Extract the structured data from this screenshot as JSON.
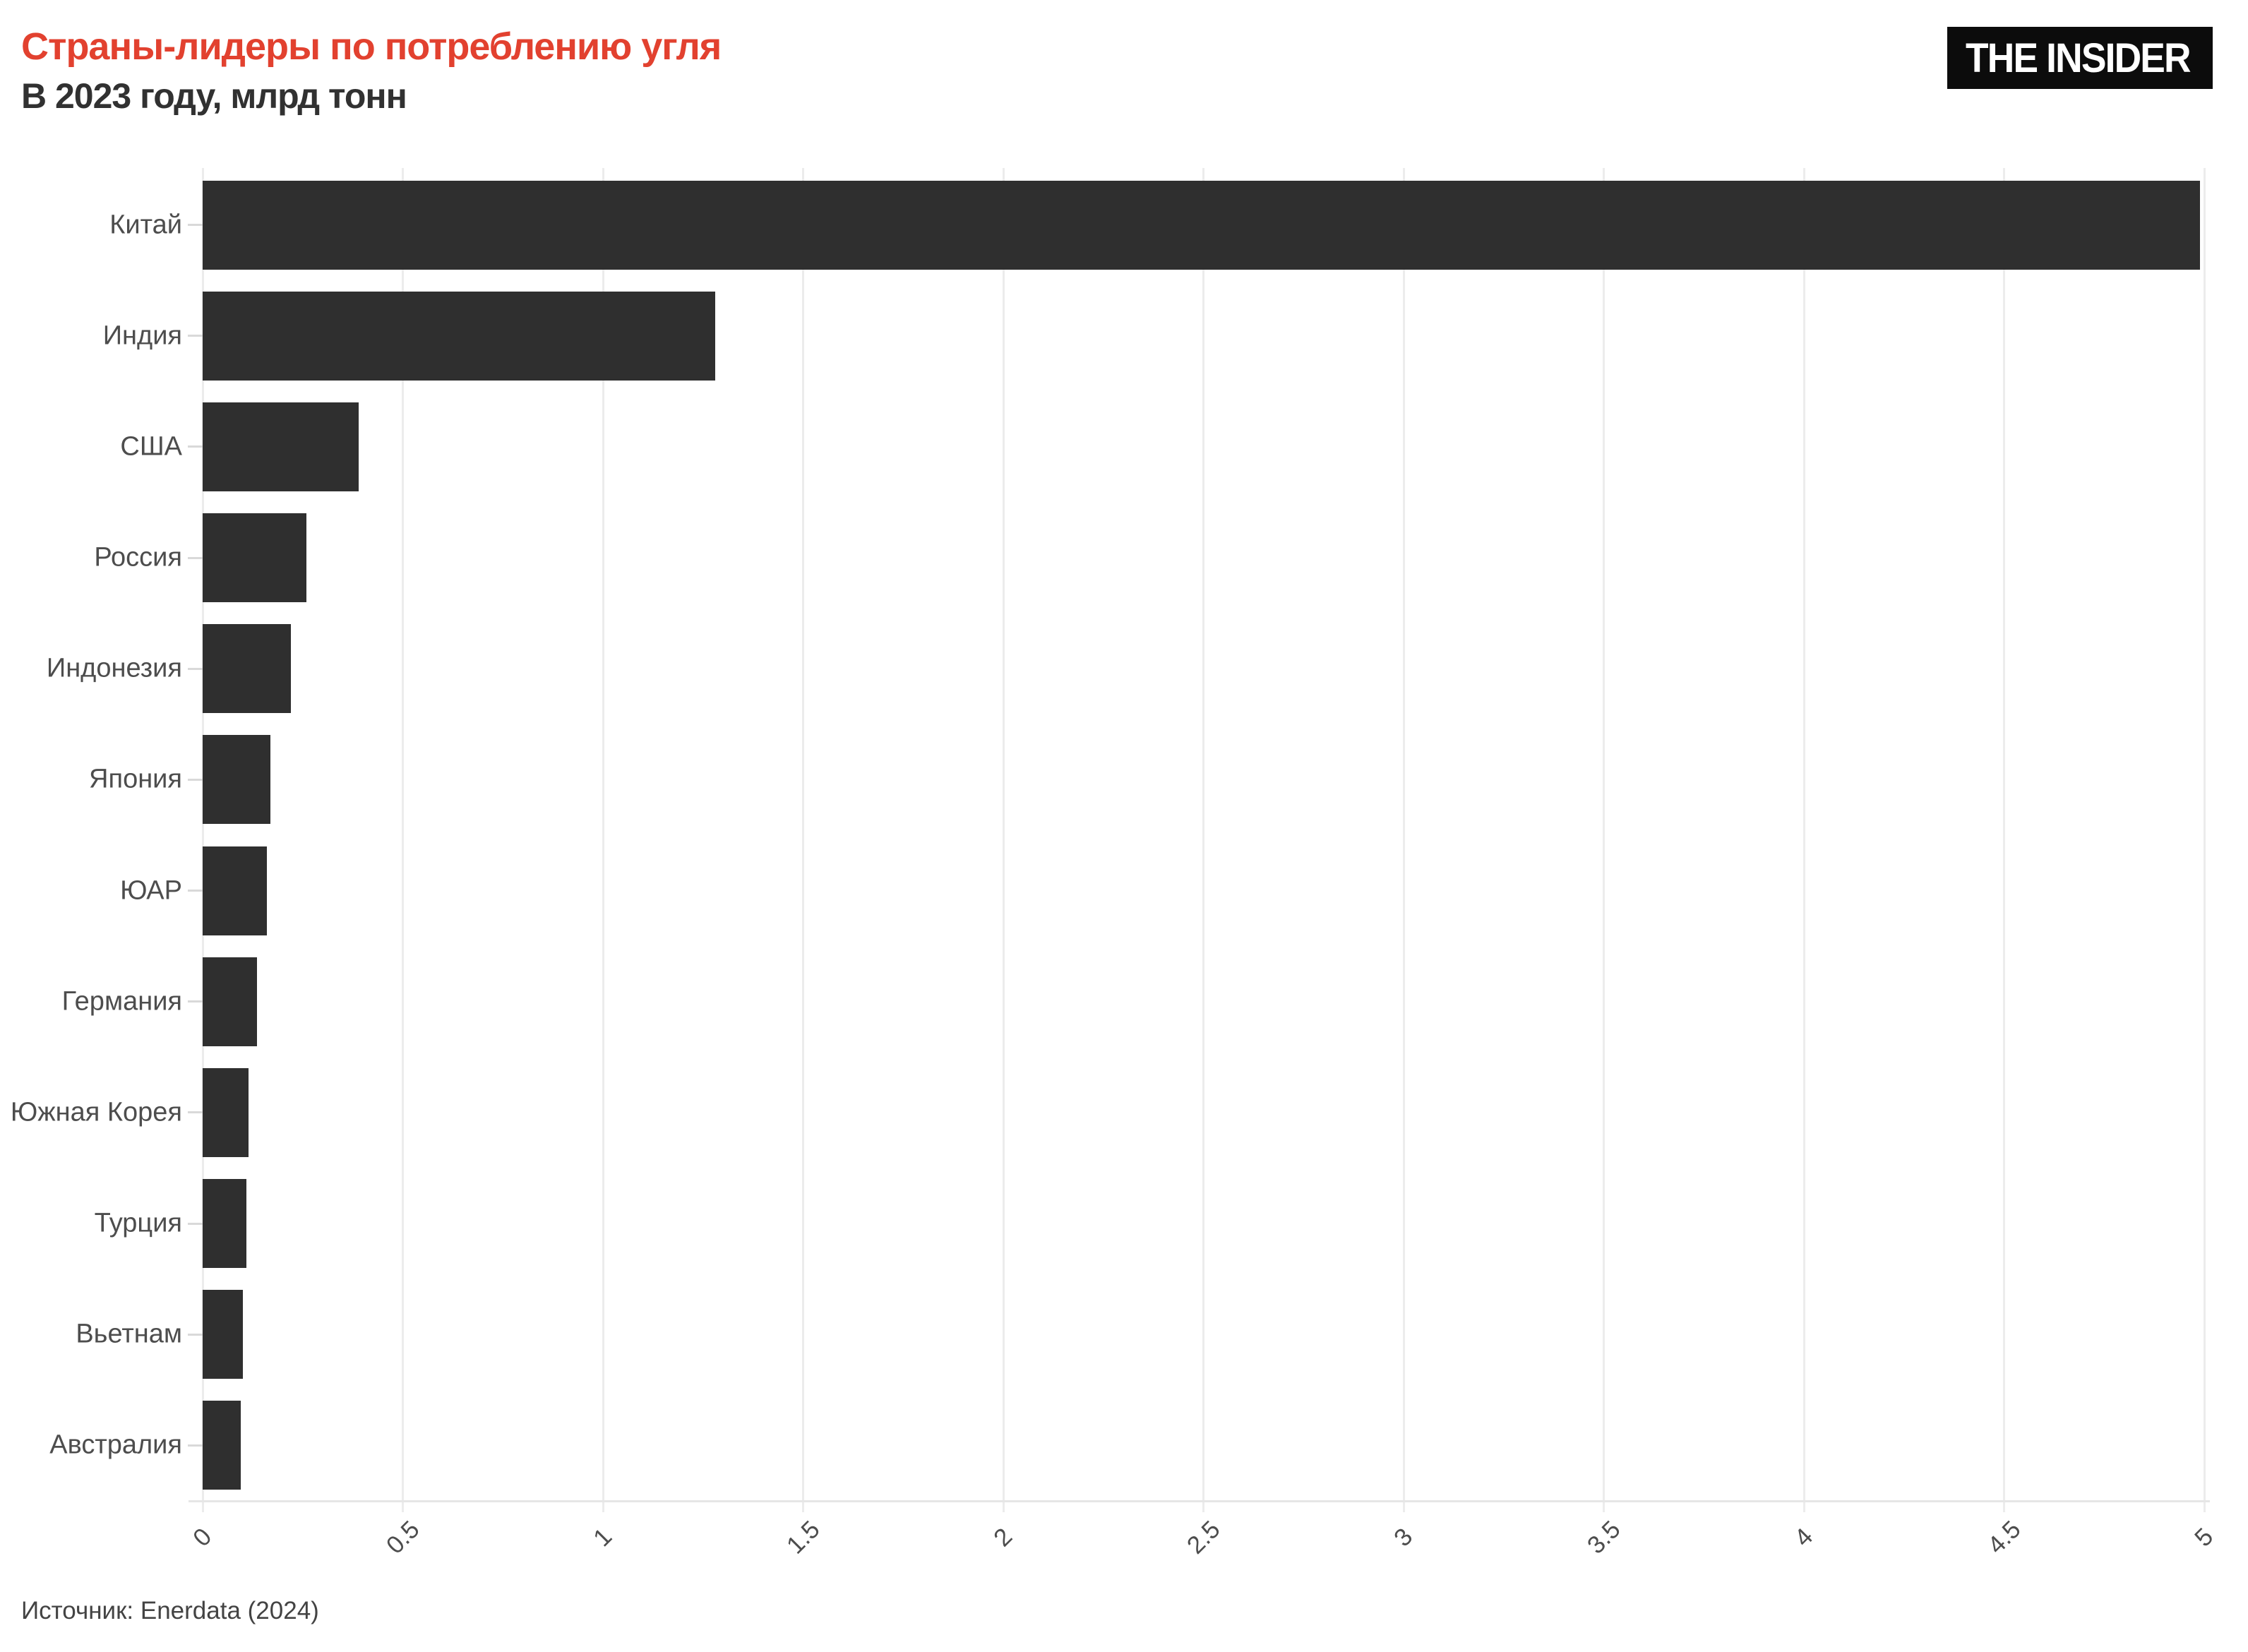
{
  "header": {
    "title": "Страны-лидеры по потреблению угля",
    "subtitle": "В 2023 году, млрд тонн",
    "title_color": "#e2412f"
  },
  "logo": {
    "text": "THE INSIDER",
    "background": "#0c0c0c",
    "text_color": "#ffffff"
  },
  "source": {
    "text": "Источник: Enerdata (2024)"
  },
  "chart_data": {
    "type": "bar",
    "orientation": "horizontal",
    "title": "Страны-лидеры по потреблению угля",
    "subtitle": "В 2023 году, млрд тонн",
    "unit": "млрд тонн",
    "categories": [
      "Китай",
      "Индия",
      "США",
      "Россия",
      "Индонезия",
      "Япония",
      "ЮАР",
      "Германия",
      "Южная Корея",
      "Турция",
      "Вьетнам",
      "Австралия"
    ],
    "values": [
      4.99,
      1.28,
      0.39,
      0.26,
      0.22,
      0.17,
      0.16,
      0.135,
      0.115,
      0.11,
      0.1,
      0.095
    ],
    "xlim": [
      0,
      5
    ],
    "xticks": [
      0,
      0.5,
      1,
      1.5,
      2,
      2.5,
      3,
      3.5,
      4,
      4.5,
      5
    ],
    "xtick_labels": [
      "0",
      "0.5",
      "1",
      "1.5",
      "2",
      "2.5",
      "3",
      "3.5",
      "4",
      "4.5",
      "5"
    ],
    "xtick_rotation_deg": -45,
    "grid": true,
    "legend": false,
    "bar_color": "#2f2f2f",
    "gridline_color": "#ececec",
    "label_color": "#4d4d4d",
    "source": "Источник: Enerdata (2024)"
  }
}
